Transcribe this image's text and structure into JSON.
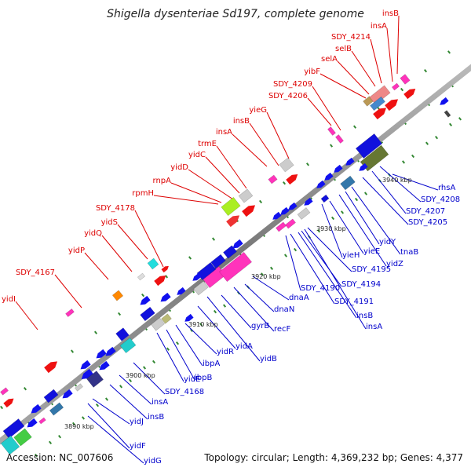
{
  "title": "Shigella dysenteriae Sd197, complete genome",
  "footer": {
    "accession": "Accession: NC_007606",
    "summary": "Topology: circular; Length: 4,369,232 bp; Genes: 4,377"
  },
  "colors": {
    "upper_label": "#dd0000",
    "lower_label": "#0000cc",
    "backbone": "#888888",
    "tick": "#338833"
  },
  "kbp_labels": [
    "3890 kbp",
    "3900 kbp",
    "3910 kbp",
    "3920 kbp",
    "3930 kbp",
    "3940 kbp"
  ],
  "upper_genes": [
    "yidI",
    "SDY_4167",
    "yidP",
    "yidQ",
    "yidS",
    "SDY_4178",
    "rpmH",
    "rnpA",
    "yidD",
    "yidC",
    "trmE",
    "insA",
    "insB",
    "yieG",
    "SDY_4206",
    "SDY_4209",
    "yibF",
    "selA",
    "selB",
    "SDY_4214",
    "insA",
    "insB"
  ],
  "lower_genes": [
    "yidG",
    "yidF",
    "yidJ",
    "insB",
    "insA",
    "SDY_4168",
    "yidE",
    "ibpB",
    "ibpA",
    "yidR",
    "yidA",
    "yidB",
    "gyrB",
    "recF",
    "dnaN",
    "dnaA",
    "SDY_4190",
    "SDY_4191",
    "SDY_4194",
    "SDY_4195",
    "insB",
    "insA",
    "yieH",
    "yieE",
    "yidZ",
    "yidY",
    "tnaB",
    "SDY_4205",
    "SDY_4207",
    "SDY_4208",
    "rhsA"
  ]
}
